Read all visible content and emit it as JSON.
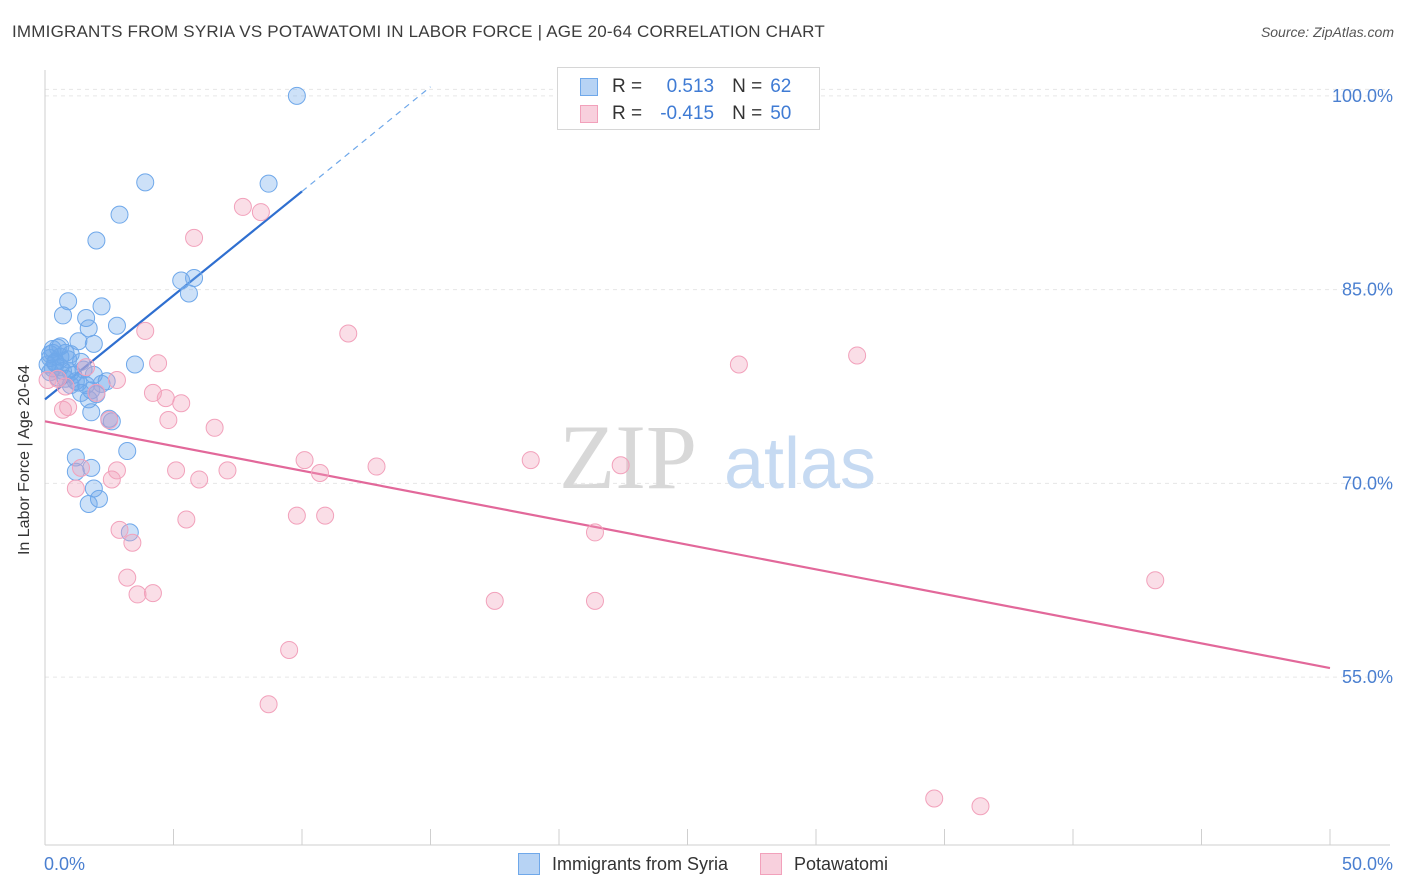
{
  "title": "IMMIGRANTS FROM SYRIA VS POTAWATOMI IN LABOR FORCE | AGE 20-64 CORRELATION CHART",
  "source": "Source: ZipAtlas.com",
  "watermark": {
    "zip": "ZIP",
    "atlas": "atlas"
  },
  "legend_top": {
    "rows": [
      {
        "r_label": "R =",
        "r_value": "0.513",
        "n_label": "N =",
        "n_value": "62",
        "color": "#6fa8ea"
      },
      {
        "r_label": "R =",
        "r_value": "-0.415",
        "n_label": "N =",
        "n_value": "50",
        "color": "#f2a1bb"
      }
    ]
  },
  "legend_bottom": {
    "items": [
      {
        "label": "Immigrants from Syria",
        "color": "#6fa8ea"
      },
      {
        "label": "Potawatomi",
        "color": "#f2a1bb"
      }
    ]
  },
  "chart_data": {
    "type": "scatter",
    "title": "IMMIGRANTS FROM SYRIA VS POTAWATOMI IN LABOR FORCE | AGE 20-64 CORRELATION CHART",
    "xlabel": "",
    "ylabel": "In Labor Force | Age 20-64",
    "xlim": [
      0,
      50
    ],
    "ylim": [
      42,
      102
    ],
    "x_tick_labels": [
      "0.0%",
      "50.0%"
    ],
    "y_ticks": [
      55,
      70,
      85,
      100
    ],
    "y_tick_labels": [
      "55.0%",
      "70.0%",
      "85.0%",
      "100.0%"
    ],
    "grid": true,
    "colors": {
      "blue": "#6fa8ea",
      "blue_line": "#2f6fd0",
      "pink": "#f2a1bb",
      "pink_line": "#e2689a",
      "tick_text": "#4a7fd0"
    },
    "series": [
      {
        "name": "Immigrants from Syria",
        "color": "#6fa8ea",
        "trend": {
          "x": [
            0,
            10
          ],
          "y": [
            76.5,
            92.6
          ],
          "dashed_to": [
            15,
            100.7
          ]
        },
        "points": [
          [
            9.8,
            100.0
          ],
          [
            3.9,
            93.3
          ],
          [
            8.7,
            93.2
          ],
          [
            2.9,
            90.8
          ],
          [
            2.0,
            88.8
          ],
          [
            5.3,
            85.7
          ],
          [
            5.6,
            84.7
          ],
          [
            5.8,
            85.9
          ],
          [
            0.9,
            84.1
          ],
          [
            0.7,
            83.0
          ],
          [
            1.6,
            82.8
          ],
          [
            1.7,
            82.0
          ],
          [
            2.2,
            83.7
          ],
          [
            2.8,
            82.2
          ],
          [
            1.9,
            80.8
          ],
          [
            1.3,
            81.0
          ],
          [
            0.3,
            80.4
          ],
          [
            0.5,
            80.5
          ],
          [
            0.8,
            80.1
          ],
          [
            1.0,
            80.0
          ],
          [
            0.2,
            79.7
          ],
          [
            0.4,
            79.4
          ],
          [
            0.6,
            79.8
          ],
          [
            0.9,
            79.6
          ],
          [
            0.1,
            79.2
          ],
          [
            0.3,
            78.9
          ],
          [
            0.7,
            78.7
          ],
          [
            1.1,
            78.4
          ],
          [
            1.5,
            78.8
          ],
          [
            1.9,
            78.4
          ],
          [
            0.5,
            78.2
          ],
          [
            1.2,
            77.9
          ],
          [
            1.6,
            77.6
          ],
          [
            1.8,
            77.2
          ],
          [
            2.2,
            77.7
          ],
          [
            1.4,
            77.0
          ],
          [
            1.7,
            76.5
          ],
          [
            1.8,
            75.5
          ],
          [
            2.5,
            75.0
          ],
          [
            2.6,
            74.8
          ],
          [
            3.5,
            79.2
          ],
          [
            0.2,
            80.0
          ],
          [
            0.6,
            79.0
          ],
          [
            1.0,
            78.6
          ],
          [
            3.2,
            72.5
          ],
          [
            1.2,
            72.0
          ],
          [
            1.8,
            71.2
          ],
          [
            1.2,
            70.9
          ],
          [
            1.9,
            69.6
          ],
          [
            2.1,
            68.8
          ],
          [
            1.7,
            68.4
          ],
          [
            3.3,
            66.2
          ],
          [
            0.4,
            79.3
          ],
          [
            0.8,
            78.1
          ],
          [
            1.3,
            77.8
          ],
          [
            0.2,
            78.6
          ],
          [
            1.0,
            77.6
          ],
          [
            2.0,
            76.9
          ],
          [
            0.6,
            80.6
          ],
          [
            1.4,
            79.4
          ],
          [
            0.3,
            80.1
          ],
          [
            2.4,
            77.9
          ]
        ]
      },
      {
        "name": "Potawatomi",
        "color": "#f2a1bb",
        "trend": {
          "x": [
            0,
            50
          ],
          "y": [
            74.8,
            55.7
          ]
        },
        "points": [
          [
            7.7,
            91.4
          ],
          [
            8.4,
            91.0
          ],
          [
            5.8,
            89.0
          ],
          [
            11.8,
            81.6
          ],
          [
            3.9,
            81.8
          ],
          [
            4.4,
            79.3
          ],
          [
            0.5,
            78.1
          ],
          [
            0.1,
            78.0
          ],
          [
            0.8,
            77.5
          ],
          [
            2.0,
            77.0
          ],
          [
            4.2,
            77.0
          ],
          [
            4.7,
            76.6
          ],
          [
            5.3,
            76.2
          ],
          [
            0.9,
            75.9
          ],
          [
            0.7,
            75.7
          ],
          [
            2.5,
            74.9
          ],
          [
            4.8,
            74.9
          ],
          [
            6.6,
            74.3
          ],
          [
            10.1,
            71.8
          ],
          [
            10.7,
            70.8
          ],
          [
            12.9,
            71.3
          ],
          [
            18.9,
            71.8
          ],
          [
            22.4,
            71.4
          ],
          [
            5.1,
            71.0
          ],
          [
            7.1,
            71.0
          ],
          [
            6.0,
            70.3
          ],
          [
            2.6,
            70.3
          ],
          [
            1.4,
            71.2
          ],
          [
            2.8,
            71.0
          ],
          [
            1.2,
            69.6
          ],
          [
            5.5,
            67.2
          ],
          [
            9.8,
            67.5
          ],
          [
            10.9,
            67.5
          ],
          [
            2.9,
            66.4
          ],
          [
            3.4,
            65.4
          ],
          [
            21.4,
            66.2
          ],
          [
            3.2,
            62.7
          ],
          [
            3.6,
            61.4
          ],
          [
            4.2,
            61.5
          ],
          [
            17.5,
            60.9
          ],
          [
            21.4,
            60.9
          ],
          [
            27.0,
            79.2
          ],
          [
            31.6,
            79.9
          ],
          [
            43.2,
            62.5
          ],
          [
            9.5,
            57.1
          ],
          [
            8.7,
            52.9
          ],
          [
            34.6,
            45.6
          ],
          [
            36.4,
            45.0
          ],
          [
            2.8,
            78.0
          ],
          [
            1.6,
            79.0
          ]
        ]
      }
    ]
  }
}
